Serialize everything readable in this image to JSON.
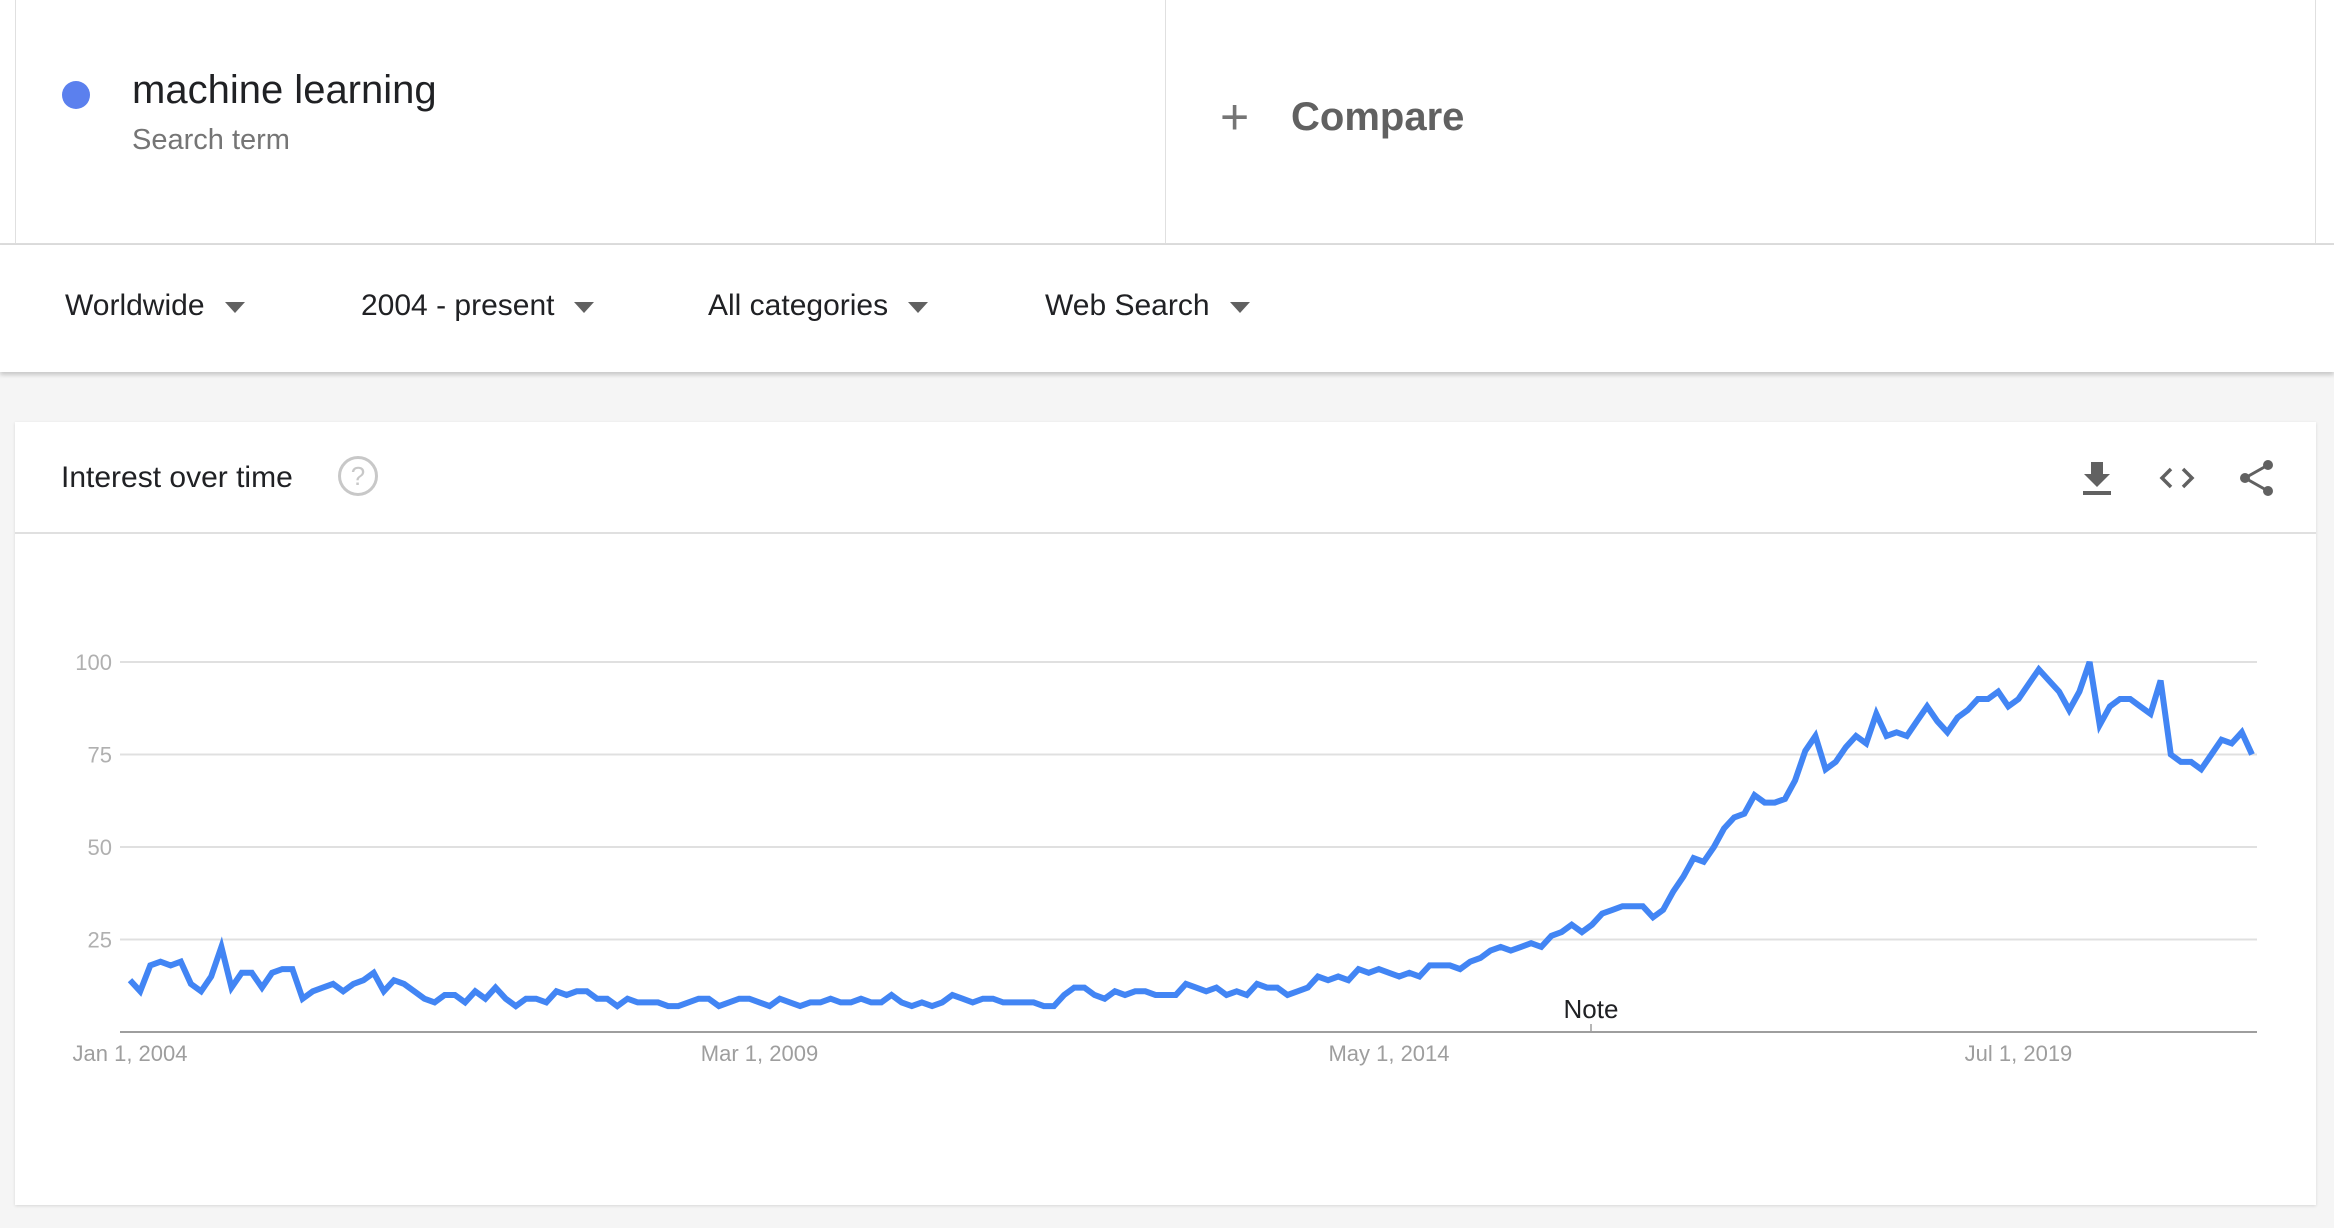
{
  "search_term": {
    "label": "machine learning",
    "sublabel": "Search term",
    "color": "#5b80ee"
  },
  "compare": {
    "icon": "plus-icon",
    "label": "Compare"
  },
  "filters": [
    {
      "label": "Worldwide"
    },
    {
      "label": "2004 - present"
    },
    {
      "label": "All categories"
    },
    {
      "label": "Web Search"
    }
  ],
  "card": {
    "title": "Interest over time",
    "help_icon": "?",
    "actions": [
      "download-icon",
      "embed-icon",
      "share-icon"
    ]
  },
  "chart_data": {
    "type": "line",
    "title": "",
    "xlabel": "",
    "ylabel": "",
    "ylim": [
      0,
      100
    ],
    "yticks": [
      "25",
      "50",
      "75",
      "100"
    ],
    "xtick_labels": [
      "Jan 1, 2004",
      "Mar 1, 2009",
      "May 1, 2014",
      "Jul 1, 2019"
    ],
    "x_start": "2004-01",
    "x_end": "2021-06",
    "x_interval": "monthly",
    "grid": true,
    "annotation": "Note",
    "line_color": "#4285f4",
    "series": [
      {
        "values": [
          14,
          11,
          18,
          19,
          18,
          19,
          13,
          11,
          15,
          23,
          12,
          16,
          16,
          12,
          16,
          17,
          17,
          9,
          11,
          12,
          13,
          11,
          13,
          14,
          16,
          11,
          14,
          13,
          11,
          9,
          8,
          10,
          10,
          8,
          11,
          9,
          12,
          9,
          7,
          9,
          9,
          8,
          11,
          10,
          11,
          11,
          9,
          9,
          7,
          9,
          8,
          8,
          8,
          7,
          7,
          8,
          9,
          9,
          7,
          8,
          9,
          9,
          8,
          7,
          9,
          8,
          7,
          8,
          8,
          9,
          8,
          8,
          9,
          8,
          8,
          10,
          8,
          7,
          8,
          7,
          8,
          10,
          9,
          8,
          9,
          9,
          8,
          8,
          8,
          8,
          7,
          7,
          10,
          12,
          12,
          10,
          9,
          11,
          10,
          11,
          11,
          10,
          10,
          10,
          13,
          12,
          11,
          12,
          10,
          11,
          10,
          13,
          12,
          12,
          10,
          11,
          12,
          15,
          14,
          15,
          14,
          17,
          16,
          17,
          16,
          15,
          16,
          15,
          18,
          18,
          18,
          17,
          19,
          20,
          22,
          23,
          22,
          23,
          24,
          23,
          26,
          27,
          29,
          27,
          29,
          32,
          33,
          34,
          34,
          34,
          31,
          33,
          38,
          42,
          47,
          46,
          50,
          55,
          58,
          59,
          64,
          62,
          62,
          63,
          68,
          76,
          80,
          71,
          73,
          77,
          80,
          78,
          86,
          80,
          81,
          80,
          84,
          88,
          84,
          81,
          85,
          87,
          90,
          90,
          92,
          88,
          90,
          94,
          98,
          95,
          92,
          87,
          92,
          100,
          83,
          88,
          90,
          90,
          88,
          86,
          95,
          75,
          73,
          73,
          71,
          75,
          79,
          78,
          81,
          75
        ]
      }
    ]
  }
}
